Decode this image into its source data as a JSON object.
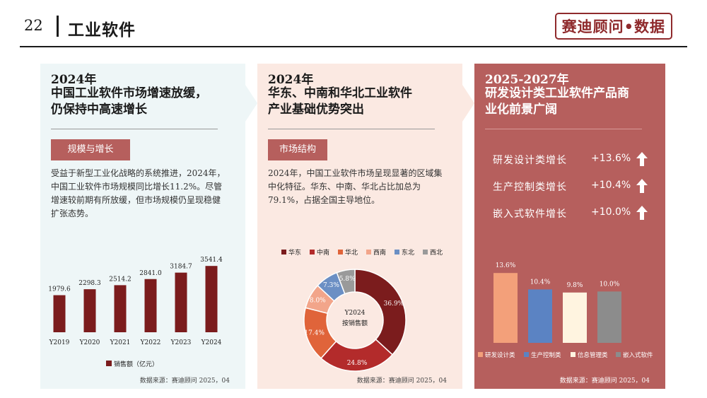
{
  "header": {
    "page_number": "22",
    "title": "工业软件",
    "logo": "赛迪顾问•数据"
  },
  "panel1": {
    "year": "2024年",
    "heading_lines": [
      "中国工业软件市场增速放缓，",
      "仍保持中高速增长"
    ],
    "tag": "规模与增长",
    "description": "受益于新型工业化战略的系统推进，2024年，中国工业软件市场规模同比增长11.2%。尽管增速较前期有所放缓，但市场规模仍呈现稳健扩张态势。",
    "source": "数据来源：赛迪顾问  2025，04"
  },
  "panel2": {
    "year": "2024年",
    "heading_lines": [
      "华东、中南和华北工业软件",
      "产业基础优势突出"
    ],
    "tag": "市场结构",
    "description": "2024年，中国工业软件市场呈现显著的区域集中化特征。华东、中南、华北占比加总为79.1%，占据全国主导地位。",
    "source": "数据来源：赛迪顾问  2025，04"
  },
  "panel3": {
    "year": "2025-2027年",
    "heading_lines": [
      "研发设计类工业软件产品商",
      "业化前景广阔"
    ],
    "growth": [
      {
        "label": "研发设计类增长",
        "value": "+13.6%"
      },
      {
        "label": "生产控制类增长",
        "value": "+10.4%"
      },
      {
        "label": "嵌入式软件增长",
        "value": "+10.0%"
      }
    ],
    "source": "数据来源：赛迪顾问  2025，04"
  },
  "chart_data": [
    {
      "type": "bar",
      "categories": [
        "Y2019",
        "Y2020",
        "Y2021",
        "Y2022",
        "Y2023",
        "Y2024"
      ],
      "series": [
        {
          "name": "销售额（亿元）",
          "values": [
            1979.6,
            2298.3,
            2514.2,
            2841.0,
            3184.7,
            3541.4
          ]
        }
      ],
      "value_labels": [
        "1979.6",
        "2298.3",
        "2514.2",
        "2841.0",
        "3184.7",
        "3541.4"
      ],
      "ylim": [
        0,
        3700
      ],
      "legend": "bottom",
      "color": "#7b1c1d"
    },
    {
      "type": "pie",
      "center_title": "Y2024",
      "center_subtitle": "按销售额",
      "legend": "top",
      "slices": [
        {
          "name": "华东",
          "value": 36.9,
          "label": "36.9%",
          "color": "#7b1c1d"
        },
        {
          "name": "中南",
          "value": 24.8,
          "label": "24.8%",
          "color": "#b32b2b"
        },
        {
          "name": "华北",
          "value": 17.4,
          "label": "17.4%",
          "color": "#e0643a"
        },
        {
          "name": "西南",
          "value": 8.0,
          "label": "8.0%",
          "color": "#f2a58a"
        },
        {
          "name": "东北",
          "value": 7.3,
          "label": "7.3%",
          "color": "#6b8fc4"
        },
        {
          "name": "西北",
          "value": 5.8,
          "label": "5.8%",
          "color": "#9a9a9a"
        }
      ]
    },
    {
      "type": "bar",
      "categories": [
        "研发设计类",
        "生产控制类",
        "信息管理类",
        "嵌入式软件"
      ],
      "values": [
        13.6,
        10.4,
        9.8,
        10.0
      ],
      "value_labels": [
        "13.6%",
        "10.4%",
        "9.8%",
        "10.0%"
      ],
      "colors": [
        "#f3a07a",
        "#5b83c3",
        "#fff4e0",
        "#8c8c8c"
      ],
      "ylim": [
        0,
        15
      ],
      "legend": "bottom"
    }
  ]
}
